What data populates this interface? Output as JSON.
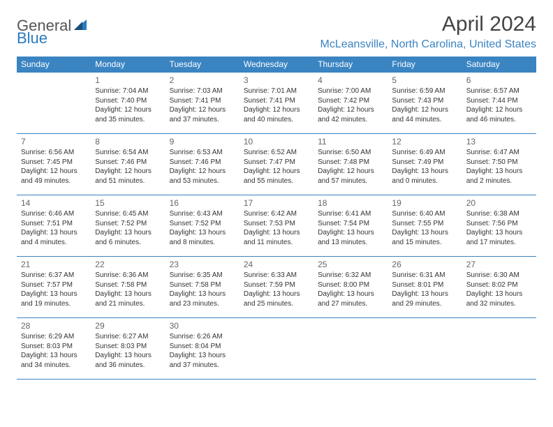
{
  "logo": {
    "text1": "General",
    "text2": "Blue"
  },
  "title": "April 2024",
  "location": "McLeansville, North Carolina, United States",
  "colors": {
    "header_bg": "#3a84c2",
    "header_text": "#ffffff",
    "border": "#3a84c2",
    "logo_gray": "#555555",
    "logo_blue": "#2b7bbd",
    "body_text": "#333333",
    "daynum": "#666666",
    "location_text": "#3a84c2",
    "background": "#ffffff"
  },
  "dayHeaders": [
    "Sunday",
    "Monday",
    "Tuesday",
    "Wednesday",
    "Thursday",
    "Friday",
    "Saturday"
  ],
  "weeks": [
    [
      null,
      {
        "n": "1",
        "sr": "Sunrise: 7:04 AM",
        "ss": "Sunset: 7:40 PM",
        "d1": "Daylight: 12 hours",
        "d2": "and 35 minutes."
      },
      {
        "n": "2",
        "sr": "Sunrise: 7:03 AM",
        "ss": "Sunset: 7:41 PM",
        "d1": "Daylight: 12 hours",
        "d2": "and 37 minutes."
      },
      {
        "n": "3",
        "sr": "Sunrise: 7:01 AM",
        "ss": "Sunset: 7:41 PM",
        "d1": "Daylight: 12 hours",
        "d2": "and 40 minutes."
      },
      {
        "n": "4",
        "sr": "Sunrise: 7:00 AM",
        "ss": "Sunset: 7:42 PM",
        "d1": "Daylight: 12 hours",
        "d2": "and 42 minutes."
      },
      {
        "n": "5",
        "sr": "Sunrise: 6:59 AM",
        "ss": "Sunset: 7:43 PM",
        "d1": "Daylight: 12 hours",
        "d2": "and 44 minutes."
      },
      {
        "n": "6",
        "sr": "Sunrise: 6:57 AM",
        "ss": "Sunset: 7:44 PM",
        "d1": "Daylight: 12 hours",
        "d2": "and 46 minutes."
      }
    ],
    [
      {
        "n": "7",
        "sr": "Sunrise: 6:56 AM",
        "ss": "Sunset: 7:45 PM",
        "d1": "Daylight: 12 hours",
        "d2": "and 49 minutes."
      },
      {
        "n": "8",
        "sr": "Sunrise: 6:54 AM",
        "ss": "Sunset: 7:46 PM",
        "d1": "Daylight: 12 hours",
        "d2": "and 51 minutes."
      },
      {
        "n": "9",
        "sr": "Sunrise: 6:53 AM",
        "ss": "Sunset: 7:46 PM",
        "d1": "Daylight: 12 hours",
        "d2": "and 53 minutes."
      },
      {
        "n": "10",
        "sr": "Sunrise: 6:52 AM",
        "ss": "Sunset: 7:47 PM",
        "d1": "Daylight: 12 hours",
        "d2": "and 55 minutes."
      },
      {
        "n": "11",
        "sr": "Sunrise: 6:50 AM",
        "ss": "Sunset: 7:48 PM",
        "d1": "Daylight: 12 hours",
        "d2": "and 57 minutes."
      },
      {
        "n": "12",
        "sr": "Sunrise: 6:49 AM",
        "ss": "Sunset: 7:49 PM",
        "d1": "Daylight: 13 hours",
        "d2": "and 0 minutes."
      },
      {
        "n": "13",
        "sr": "Sunrise: 6:47 AM",
        "ss": "Sunset: 7:50 PM",
        "d1": "Daylight: 13 hours",
        "d2": "and 2 minutes."
      }
    ],
    [
      {
        "n": "14",
        "sr": "Sunrise: 6:46 AM",
        "ss": "Sunset: 7:51 PM",
        "d1": "Daylight: 13 hours",
        "d2": "and 4 minutes."
      },
      {
        "n": "15",
        "sr": "Sunrise: 6:45 AM",
        "ss": "Sunset: 7:52 PM",
        "d1": "Daylight: 13 hours",
        "d2": "and 6 minutes."
      },
      {
        "n": "16",
        "sr": "Sunrise: 6:43 AM",
        "ss": "Sunset: 7:52 PM",
        "d1": "Daylight: 13 hours",
        "d2": "and 8 minutes."
      },
      {
        "n": "17",
        "sr": "Sunrise: 6:42 AM",
        "ss": "Sunset: 7:53 PM",
        "d1": "Daylight: 13 hours",
        "d2": "and 11 minutes."
      },
      {
        "n": "18",
        "sr": "Sunrise: 6:41 AM",
        "ss": "Sunset: 7:54 PM",
        "d1": "Daylight: 13 hours",
        "d2": "and 13 minutes."
      },
      {
        "n": "19",
        "sr": "Sunrise: 6:40 AM",
        "ss": "Sunset: 7:55 PM",
        "d1": "Daylight: 13 hours",
        "d2": "and 15 minutes."
      },
      {
        "n": "20",
        "sr": "Sunrise: 6:38 AM",
        "ss": "Sunset: 7:56 PM",
        "d1": "Daylight: 13 hours",
        "d2": "and 17 minutes."
      }
    ],
    [
      {
        "n": "21",
        "sr": "Sunrise: 6:37 AM",
        "ss": "Sunset: 7:57 PM",
        "d1": "Daylight: 13 hours",
        "d2": "and 19 minutes."
      },
      {
        "n": "22",
        "sr": "Sunrise: 6:36 AM",
        "ss": "Sunset: 7:58 PM",
        "d1": "Daylight: 13 hours",
        "d2": "and 21 minutes."
      },
      {
        "n": "23",
        "sr": "Sunrise: 6:35 AM",
        "ss": "Sunset: 7:58 PM",
        "d1": "Daylight: 13 hours",
        "d2": "and 23 minutes."
      },
      {
        "n": "24",
        "sr": "Sunrise: 6:33 AM",
        "ss": "Sunset: 7:59 PM",
        "d1": "Daylight: 13 hours",
        "d2": "and 25 minutes."
      },
      {
        "n": "25",
        "sr": "Sunrise: 6:32 AM",
        "ss": "Sunset: 8:00 PM",
        "d1": "Daylight: 13 hours",
        "d2": "and 27 minutes."
      },
      {
        "n": "26",
        "sr": "Sunrise: 6:31 AM",
        "ss": "Sunset: 8:01 PM",
        "d1": "Daylight: 13 hours",
        "d2": "and 29 minutes."
      },
      {
        "n": "27",
        "sr": "Sunrise: 6:30 AM",
        "ss": "Sunset: 8:02 PM",
        "d1": "Daylight: 13 hours",
        "d2": "and 32 minutes."
      }
    ],
    [
      {
        "n": "28",
        "sr": "Sunrise: 6:29 AM",
        "ss": "Sunset: 8:03 PM",
        "d1": "Daylight: 13 hours",
        "d2": "and 34 minutes."
      },
      {
        "n": "29",
        "sr": "Sunrise: 6:27 AM",
        "ss": "Sunset: 8:03 PM",
        "d1": "Daylight: 13 hours",
        "d2": "and 36 minutes."
      },
      {
        "n": "30",
        "sr": "Sunrise: 6:26 AM",
        "ss": "Sunset: 8:04 PM",
        "d1": "Daylight: 13 hours",
        "d2": "and 37 minutes."
      },
      null,
      null,
      null,
      null
    ]
  ]
}
